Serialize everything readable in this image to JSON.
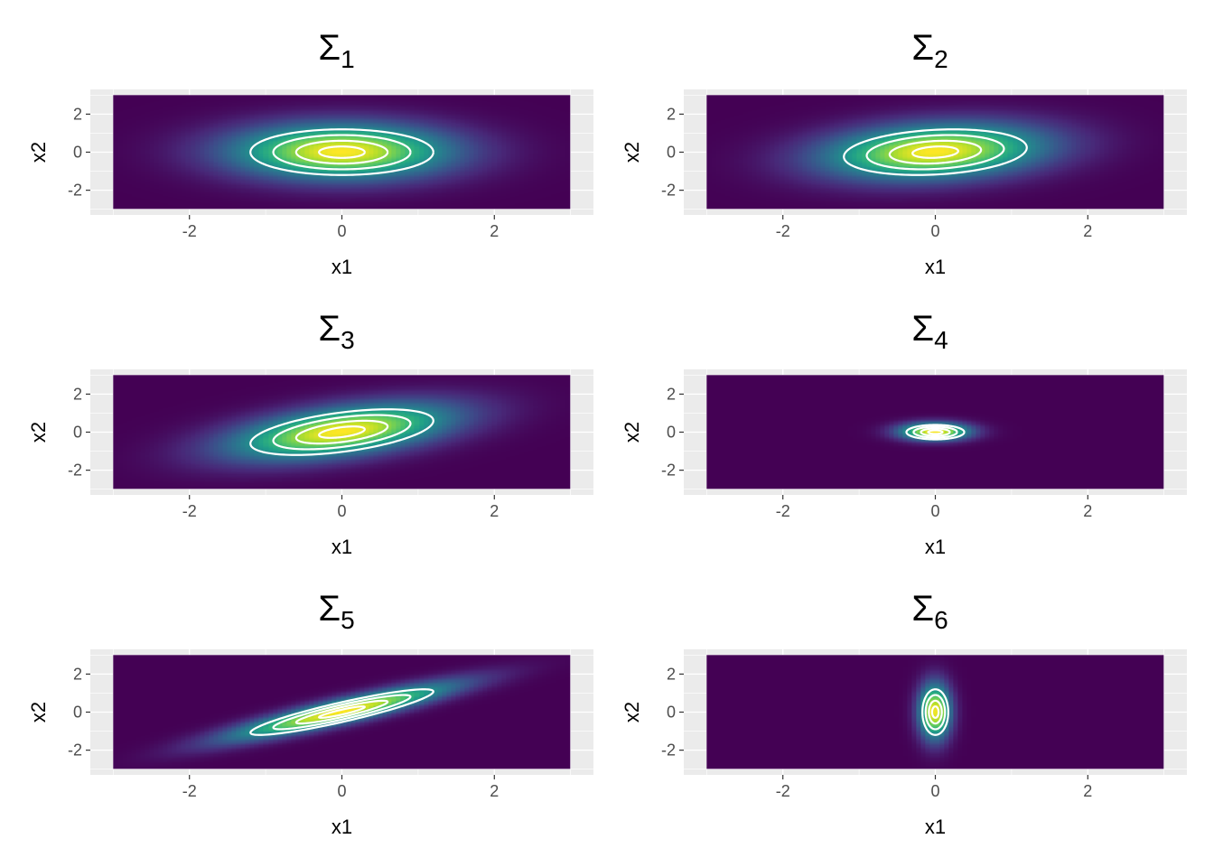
{
  "chart_data": [
    {
      "type": "heatmap",
      "title": "Σ",
      "title_subscript": "1",
      "xlabel": "x1",
      "ylabel": "x2",
      "xlim": [
        -3,
        3
      ],
      "ylim": [
        -3,
        3
      ],
      "xticks": [
        "-2",
        "0",
        "2"
      ],
      "yticks": [
        "-2",
        "0",
        "2"
      ],
      "covariance": [
        [
          1.0,
          0.0
        ],
        [
          0.0,
          1.0
        ]
      ],
      "contours": [
        0.3,
        0.6,
        0.9,
        1.2
      ],
      "grid": true,
      "colormap": "viridis",
      "contour_color": "#ffffff"
    },
    {
      "type": "heatmap",
      "title": "Σ",
      "title_subscript": "2",
      "xlabel": "x1",
      "ylabel": "x2",
      "xlim": [
        -3,
        3
      ],
      "ylim": [
        -3,
        3
      ],
      "xticks": [
        "-2",
        "0",
        "2"
      ],
      "yticks": [
        "-2",
        "0",
        "2"
      ],
      "covariance": [
        [
          1.0,
          0.2
        ],
        [
          0.2,
          1.0
        ]
      ],
      "contours": [
        0.3,
        0.6,
        0.9,
        1.2
      ],
      "grid": true,
      "colormap": "viridis",
      "contour_color": "#ffffff"
    },
    {
      "type": "heatmap",
      "title": "Σ",
      "title_subscript": "3",
      "xlabel": "x1",
      "ylabel": "x2",
      "xlim": [
        -3,
        3
      ],
      "ylim": [
        -3,
        3
      ],
      "xticks": [
        "-2",
        "0",
        "2"
      ],
      "yticks": [
        "-2",
        "0",
        "2"
      ],
      "covariance": [
        [
          1.0,
          0.5
        ],
        [
          0.5,
          1.0
        ]
      ],
      "contours": [
        0.3,
        0.6,
        0.9,
        1.2
      ],
      "grid": true,
      "colormap": "viridis",
      "contour_color": "#ffffff"
    },
    {
      "type": "heatmap",
      "title": "Σ",
      "title_subscript": "4",
      "xlabel": "x1",
      "ylabel": "x2",
      "xlim": [
        -3,
        3
      ],
      "ylim": [
        -3,
        3
      ],
      "xticks": [
        "-2",
        "0",
        "2"
      ],
      "yticks": [
        "-2",
        "0",
        "2"
      ],
      "covariance": [
        [
          0.1,
          0.0
        ],
        [
          0.0,
          0.1
        ]
      ],
      "contours": [
        0.3,
        0.6,
        0.9,
        1.2
      ],
      "grid": true,
      "colormap": "viridis",
      "contour_color": "#ffffff"
    },
    {
      "type": "heatmap",
      "title": "Σ",
      "title_subscript": "5",
      "xlabel": "x1",
      "ylabel": "x2",
      "xlim": [
        -3,
        3
      ],
      "ylim": [
        -3,
        3
      ],
      "xticks": [
        "-2",
        "0",
        "2"
      ],
      "yticks": [
        "-2",
        "0",
        "2"
      ],
      "covariance": [
        [
          1.0,
          0.9
        ],
        [
          0.9,
          1.0
        ]
      ],
      "contours": [
        0.3,
        0.6,
        0.9,
        1.2
      ],
      "grid": true,
      "colormap": "viridis",
      "contour_color": "#ffffff"
    },
    {
      "type": "heatmap",
      "title": "Σ",
      "title_subscript": "6",
      "xlabel": "x1",
      "ylabel": "x2",
      "xlim": [
        -3,
        3
      ],
      "ylim": [
        -3,
        3
      ],
      "xticks": [
        "-2",
        "0",
        "2"
      ],
      "yticks": [
        "-2",
        "0",
        "2"
      ],
      "covariance": [
        [
          0.02,
          0.0
        ],
        [
          0.0,
          1.0
        ]
      ],
      "contours": [
        0.3,
        0.6,
        0.9,
        1.2
      ],
      "grid": true,
      "colormap": "viridis",
      "contour_color": "#ffffff"
    }
  ]
}
